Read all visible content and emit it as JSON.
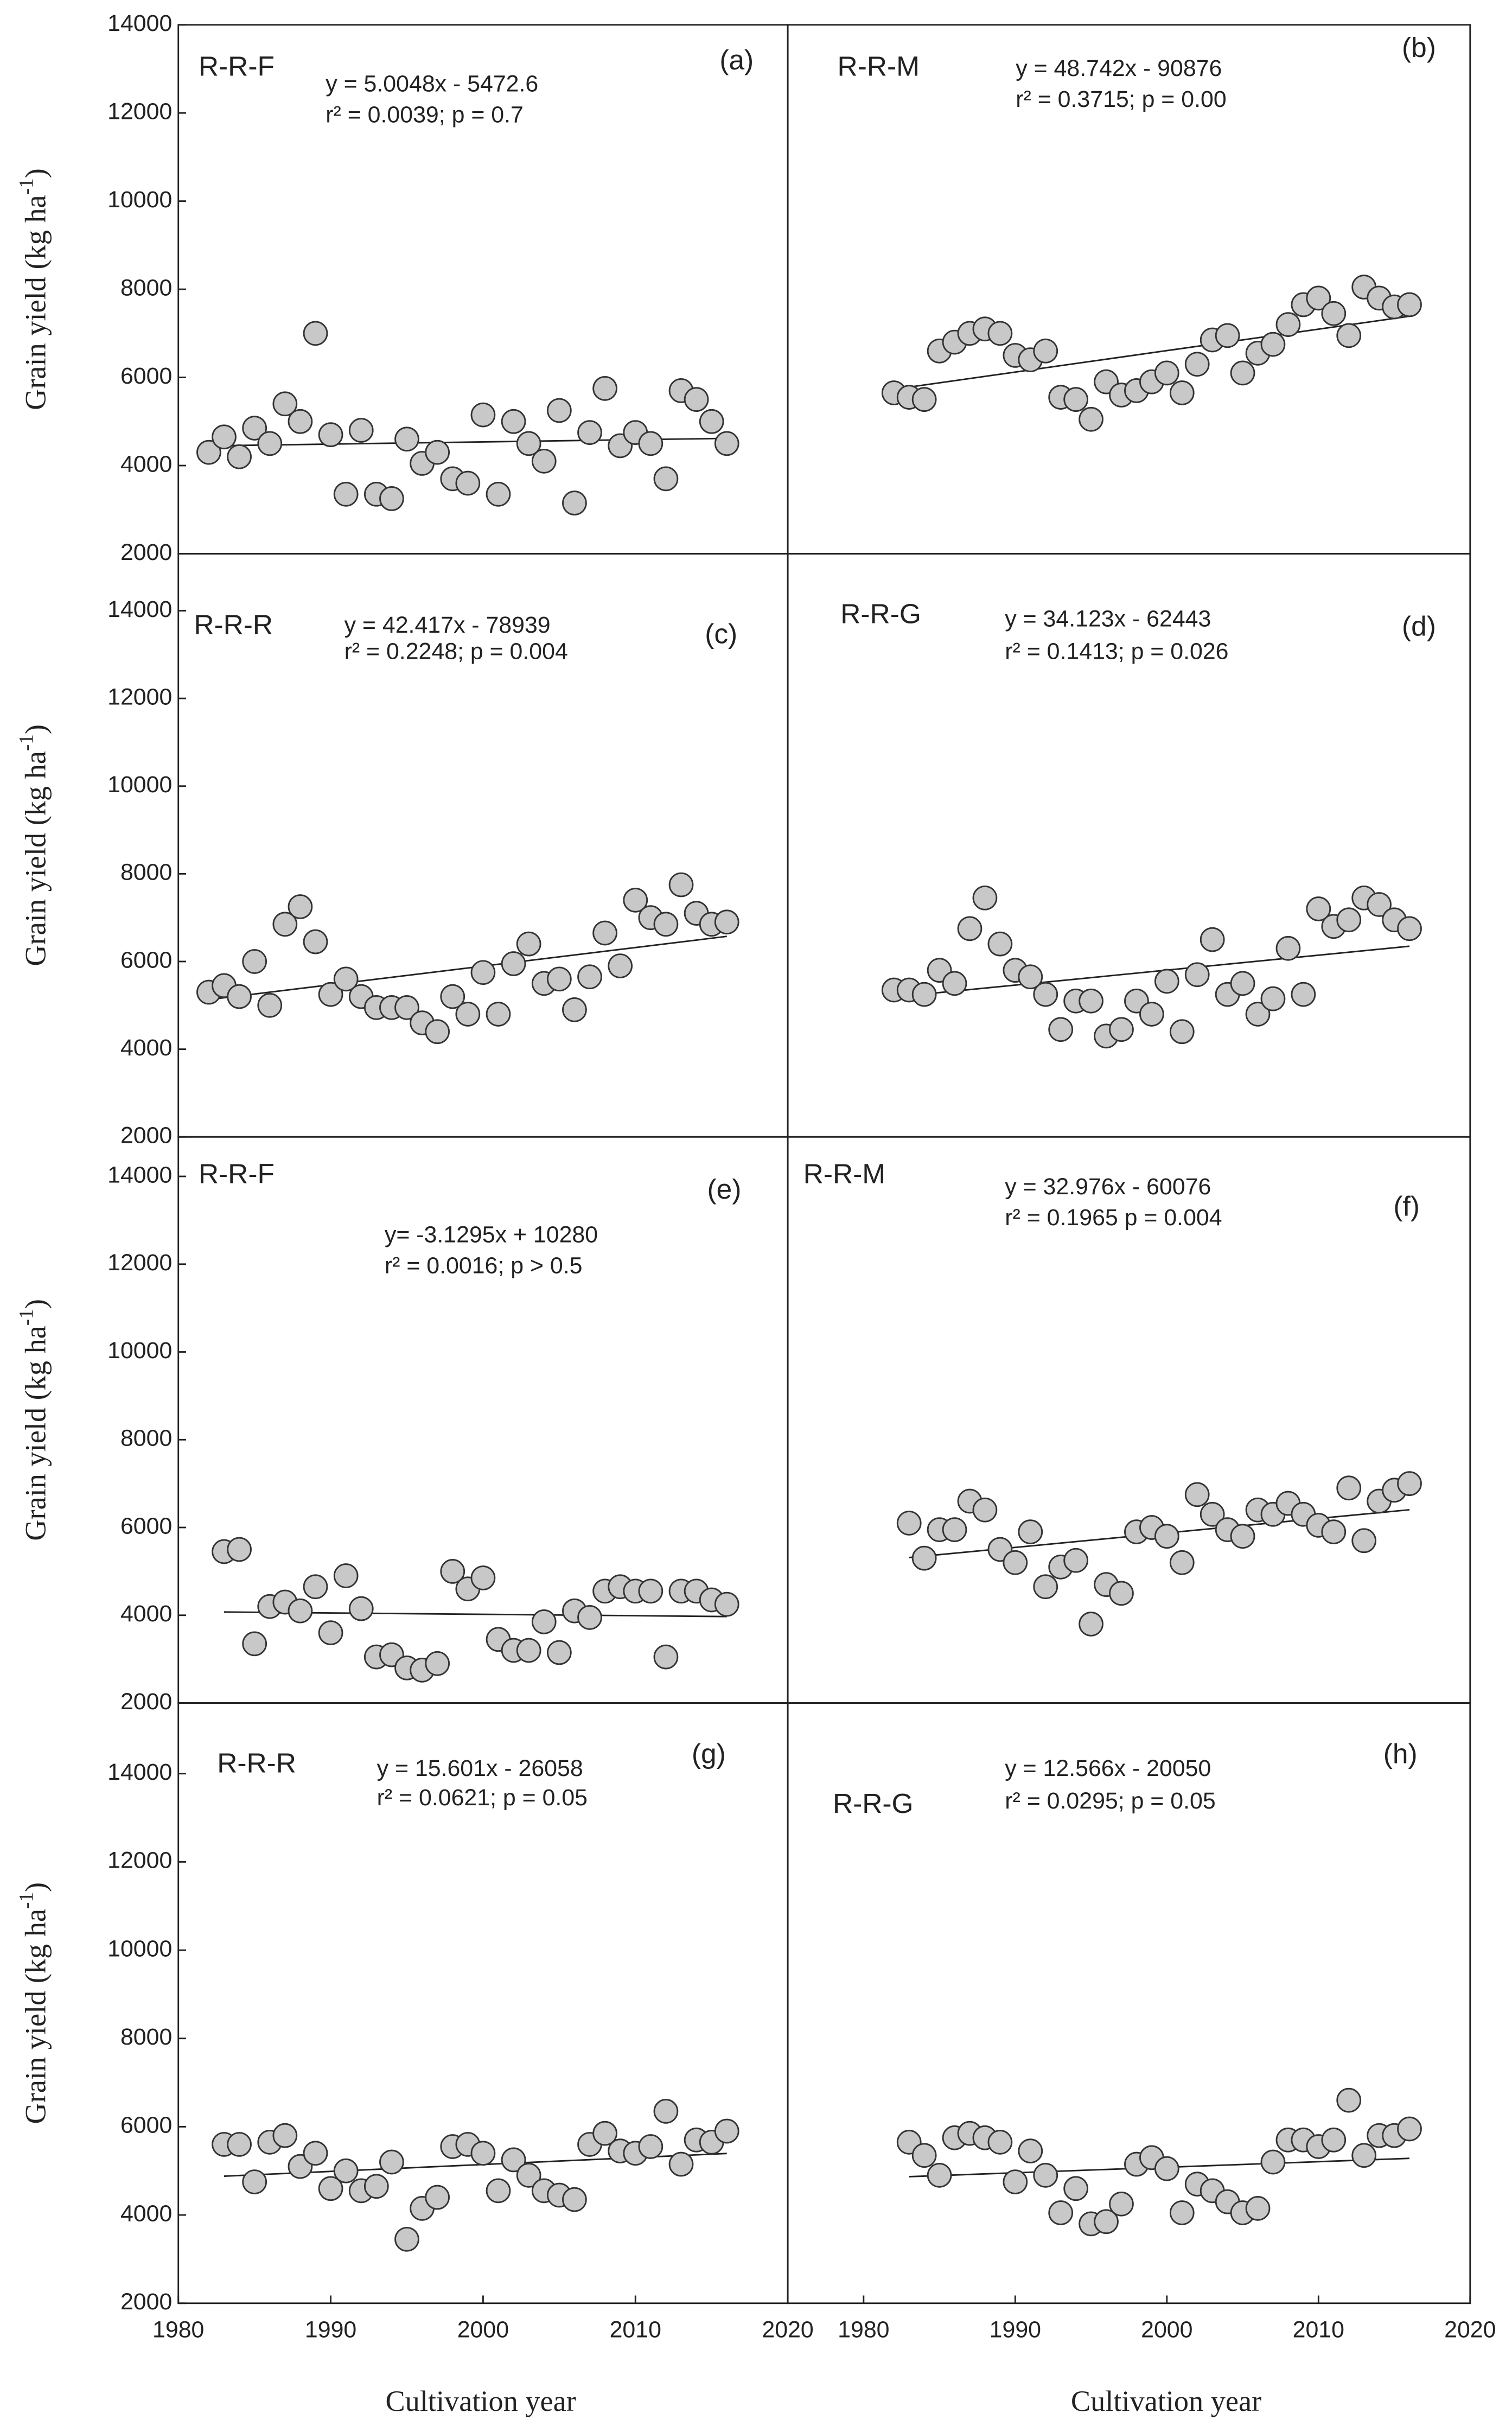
{
  "chart_data": [
    {
      "type": "scatter",
      "label": "R-R-F",
      "panel": "(a)",
      "equation": "y = 5.0048x - 5472.6",
      "stats": "r² = 0.0039; p = 0.7",
      "trend": {
        "slope": 5.0048,
        "intercept": -5472.6
      },
      "ylabel": [
        "Grain yield (kg ha",
        "-1",
        ")"
      ],
      "x": [
        1982,
        1983,
        1984,
        1985,
        1986,
        1987,
        1988,
        1989,
        1990,
        1991,
        1992,
        1993,
        1994,
        1995,
        1996,
        1997,
        1998,
        1999,
        2000,
        2001,
        2002,
        2003,
        2004,
        2005,
        2006,
        2007,
        2008,
        2009,
        2010,
        2011,
        2012,
        2013,
        2014,
        2015,
        2016
      ],
      "values": [
        4300,
        4650,
        4200,
        4850,
        4500,
        5400,
        5000,
        7000,
        4700,
        3350,
        4800,
        3350,
        3250,
        4600,
        4050,
        4300,
        3700,
        3600,
        5150,
        3350,
        5000,
        4500,
        4100,
        5250,
        3150,
        4750,
        5750,
        4450,
        4750,
        4500,
        3700,
        5700,
        5500,
        5000,
        4500
      ],
      "color": "#c8c8c8",
      "xlim": [
        1980,
        2020
      ],
      "ylim": [
        2000,
        14000
      ],
      "yticks": [
        2000,
        4000,
        6000,
        8000,
        10000,
        12000,
        14000
      ]
    },
    {
      "type": "scatter",
      "label": "R-R-M",
      "panel": "(b)",
      "equation": "y = 48.742x - 90876",
      "stats": "r² = 0.3715; p = 0.00",
      "trend": {
        "slope": 48.742,
        "intercept": -90876
      },
      "x": [
        1982,
        1983,
        1984,
        1985,
        1986,
        1987,
        1988,
        1989,
        1990,
        1991,
        1992,
        1993,
        1994,
        1995,
        1996,
        1997,
        1998,
        1999,
        2000,
        2001,
        2002,
        2003,
        2004,
        2005,
        2006,
        2007,
        2008,
        2009,
        2010,
        2011,
        2012,
        2013,
        2014,
        2015,
        2016
      ],
      "values": [
        5650,
        5550,
        5500,
        6600,
        6800,
        7000,
        7100,
        7000,
        6500,
        6400,
        6600,
        5550,
        5500,
        5050,
        5900,
        5600,
        5700,
        5900,
        6100,
        5650,
        6300,
        6850,
        6950,
        6100,
        6550,
        6750,
        7200,
        7650,
        7800,
        7450,
        6950,
        8050,
        7800,
        7600,
        7650
      ],
      "color": "#c8c8c8",
      "xlim": [
        1975,
        2020
      ],
      "ylim": [
        2000,
        14000
      ]
    },
    {
      "type": "scatter",
      "label": "R-R-R",
      "panel": "(c)",
      "equation": "y = 42.417x - 78939",
      "stats": "r² = 0.2248; p = 0.004",
      "trend": {
        "slope": 42.417,
        "intercept": -78939
      },
      "ylabel": [
        "Grain yield (kg ha",
        "-1",
        ")"
      ],
      "x": [
        1982,
        1983,
        1984,
        1985,
        1986,
        1987,
        1988,
        1989,
        1990,
        1991,
        1992,
        1993,
        1994,
        1995,
        1996,
        1997,
        1998,
        1999,
        2000,
        2001,
        2002,
        2003,
        2004,
        2005,
        2006,
        2007,
        2008,
        2009,
        2010,
        2011,
        2012,
        2013,
        2014,
        2015,
        2016
      ],
      "values": [
        5300,
        5450,
        5200,
        6000,
        5000,
        6850,
        7250,
        6450,
        5250,
        5600,
        5200,
        4950,
        4950,
        4950,
        4600,
        4400,
        5200,
        4800,
        5750,
        4800,
        5950,
        6400,
        5500,
        5600,
        4900,
        5650,
        6650,
        5900,
        7400,
        7000,
        6850,
        7750,
        7100,
        6850,
        6900
      ],
      "color": "#c8c8c8",
      "xlim": [
        1980,
        2020
      ],
      "ylim": [
        2000,
        15300
      ],
      "yticks": [
        2000,
        4000,
        6000,
        8000,
        10000,
        12000,
        14000
      ]
    },
    {
      "type": "scatter",
      "label": "R-R-G",
      "panel": "(d)",
      "equation": "y = 34.123x - 62443",
      "stats": "r² = 0.1413; p = 0.026",
      "trend": {
        "slope": 34.123,
        "intercept": -62443
      },
      "x": [
        1982,
        1983,
        1984,
        1985,
        1986,
        1987,
        1988,
        1989,
        1990,
        1991,
        1992,
        1993,
        1994,
        1995,
        1996,
        1997,
        1998,
        1999,
        2000,
        2001,
        2002,
        2003,
        2004,
        2005,
        2006,
        2007,
        2008,
        2009,
        2010,
        2011,
        2012,
        2013,
        2014,
        2015,
        2016
      ],
      "values": [
        5350,
        5350,
        5250,
        5800,
        5500,
        6750,
        7450,
        6400,
        5800,
        5650,
        5250,
        4450,
        5100,
        5100,
        4300,
        4450,
        5100,
        4800,
        5550,
        4400,
        5700,
        6500,
        5250,
        5500,
        4800,
        5150,
        6300,
        5250,
        7200,
        6800,
        6950,
        7450,
        7300,
        6950,
        6750
      ],
      "color": "#c8c8c8",
      "xlim": [
        1975,
        2020
      ],
      "ylim": [
        2000,
        15300
      ]
    },
    {
      "type": "scatter",
      "label": "R-R-F",
      "panel": "(e)",
      "equation": "y= -3.1295x + 10280",
      "stats": "r² = 0.0016; p > 0.5",
      "trend": {
        "slope": -3.1295,
        "intercept": 10280
      },
      "ylabel": [
        "Grain yield (kg ha",
        "-1",
        ")"
      ],
      "x": [
        1983,
        1984,
        1985,
        1986,
        1987,
        1988,
        1989,
        1990,
        1991,
        1992,
        1993,
        1994,
        1995,
        1996,
        1997,
        1998,
        1999,
        2000,
        2001,
        2002,
        2003,
        2004,
        2005,
        2006,
        2007,
        2008,
        2009,
        2010,
        2011,
        2012,
        2013,
        2014,
        2015,
        2016
      ],
      "values": [
        5450,
        5500,
        3350,
        4200,
        4300,
        4100,
        4650,
        3600,
        4900,
        4150,
        3050,
        3100,
        2800,
        2750,
        2900,
        5000,
        4600,
        4850,
        3450,
        3200,
        3200,
        3850,
        3150,
        4100,
        3950,
        4550,
        4650,
        4550,
        4550,
        3050,
        4550,
        4550,
        4350,
        4250
      ],
      "color": "#c8c8c8",
      "xlim": [
        1980,
        2020
      ],
      "ylim": [
        2000,
        14900
      ],
      "yticks": [
        2000,
        4000,
        6000,
        8000,
        10000,
        12000,
        14000
      ]
    },
    {
      "type": "scatter",
      "label": "R-R-M",
      "panel": "(f)",
      "equation": "y = 32.976x - 60076",
      "stats": "r² = 0.1965 p = 0.004",
      "trend": {
        "slope": 32.976,
        "intercept": -60076
      },
      "x": [
        1983,
        1984,
        1985,
        1986,
        1987,
        1988,
        1989,
        1990,
        1991,
        1992,
        1993,
        1994,
        1995,
        1996,
        1997,
        1998,
        1999,
        2000,
        2001,
        2002,
        2003,
        2004,
        2005,
        2006,
        2007,
        2008,
        2009,
        2010,
        2011,
        2012,
        2013,
        2014,
        2015,
        2016
      ],
      "values": [
        6100,
        5300,
        5950,
        5950,
        6600,
        6400,
        5500,
        5200,
        5900,
        4650,
        5100,
        5250,
        3800,
        4700,
        4500,
        5900,
        6000,
        5800,
        5200,
        6750,
        6300,
        5950,
        5800,
        6400,
        6300,
        6550,
        6300,
        6050,
        5900,
        6900,
        5700,
        6600,
        6850,
        7000
      ],
      "color": "#c8c8c8",
      "xlim": [
        1975,
        2020
      ],
      "ylim": [
        2000,
        14900
      ]
    },
    {
      "type": "scatter",
      "label": "R-R-R",
      "panel": "(g)",
      "equation": "y = 15.601x - 26058",
      "stats": "r² = 0.0621; p = 0.05",
      "trend": {
        "slope": 15.601,
        "intercept": -26058
      },
      "ylabel": [
        "Grain yield (kg ha",
        "-1",
        ")"
      ],
      "xlabel": "Cultivation year",
      "x": [
        1983,
        1984,
        1985,
        1986,
        1987,
        1988,
        1989,
        1990,
        1991,
        1992,
        1993,
        1994,
        1995,
        1996,
        1997,
        1998,
        1999,
        2000,
        2001,
        2002,
        2003,
        2004,
        2005,
        2006,
        2007,
        2008,
        2009,
        2010,
        2011,
        2012,
        2013,
        2014,
        2015,
        2016
      ],
      "values": [
        5600,
        5600,
        4750,
        5650,
        5800,
        5100,
        5400,
        4600,
        5000,
        4550,
        4650,
        5200,
        3450,
        4150,
        4400,
        5550,
        5600,
        5400,
        4550,
        5250,
        4900,
        4550,
        4450,
        4350,
        5600,
        5850,
        5450,
        5400,
        5550,
        6350,
        5150,
        5700,
        5650,
        5900
      ],
      "color": "#c8c8c8",
      "xlim": [
        1980,
        2020
      ],
      "ylim": [
        2000,
        15600
      ],
      "yticks": [
        2000,
        4000,
        6000,
        8000,
        10000,
        12000,
        14000
      ],
      "xticks": [
        1980,
        1990,
        2000,
        2010,
        2020
      ]
    },
    {
      "type": "scatter",
      "label": "R-R-G",
      "panel": "(h)",
      "equation": "y = 12.566x - 20050",
      "stats": "r² = 0.0295; p = 0.05",
      "trend": {
        "slope": 12.566,
        "intercept": -20050
      },
      "xlabel": "Cultivation year",
      "x": [
        1983,
        1984,
        1985,
        1986,
        1987,
        1988,
        1989,
        1990,
        1991,
        1992,
        1993,
        1994,
        1995,
        1996,
        1997,
        1998,
        1999,
        2000,
        2001,
        2002,
        2003,
        2004,
        2005,
        2006,
        2007,
        2008,
        2009,
        2010,
        2011,
        2012,
        2013,
        2014,
        2015,
        2016
      ],
      "values": [
        5650,
        5350,
        4900,
        5750,
        5850,
        5750,
        5650,
        4750,
        5450,
        4900,
        4050,
        4600,
        3800,
        3850,
        4250,
        5150,
        5300,
        5050,
        4050,
        4700,
        4550,
        4300,
        4050,
        4150,
        5200,
        5700,
        5700,
        5550,
        5700,
        6600,
        5350,
        5800,
        5800,
        5950
      ],
      "color": "#c8c8c8",
      "xlim": [
        1975,
        2020
      ],
      "ylim": [
        2000,
        15600
      ],
      "xticks": [
        1980,
        1990,
        2000,
        2010,
        2020
      ]
    }
  ]
}
